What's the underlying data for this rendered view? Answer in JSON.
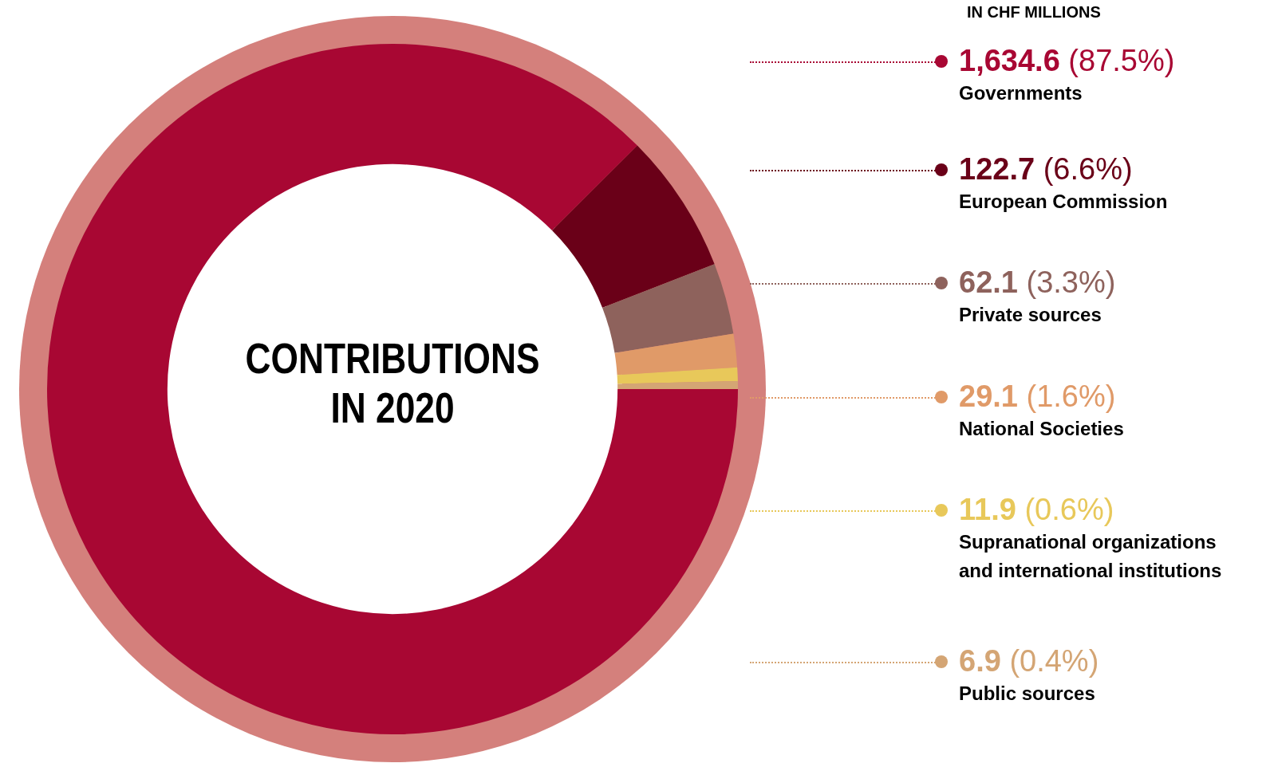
{
  "chart_data": {
    "type": "donut",
    "title": "CONTRIBUTIONS IN 2020",
    "subtitle": "IN CHF MILLIONS",
    "categories": [
      "Governments",
      "European Commission",
      "Private sources",
      "National Societies",
      "Supranational organizations and international institutions",
      "Public sources"
    ],
    "values": [
      1634.6,
      122.7,
      62.1,
      29.1,
      11.9,
      6.9
    ],
    "colors": [
      "#a80733",
      "#6a0018",
      "#8e625c",
      "#e09a68",
      "#e8c85a",
      "#d4a574"
    ],
    "value_labels": [
      "1,634.6 (87.5%)",
      "122.7 (6.6%)",
      "62.1 (3.3%)",
      "29.1 (1.6%)",
      "11.9 (0.6%)",
      "6.9 (0.4%)"
    ],
    "legend": "right"
  }
}
